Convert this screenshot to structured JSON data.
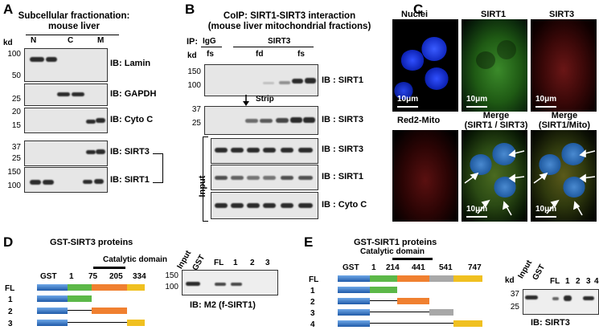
{
  "panelA": {
    "letter": "A",
    "title_line1": "Subcellular fractionation:",
    "title_line2": "mouse liver",
    "lanes": [
      "N",
      "C",
      "M"
    ],
    "kd": "kd",
    "ticks": [
      "100",
      "50",
      "25",
      "20",
      "15",
      "37",
      "25",
      "150",
      "100"
    ],
    "ib_labels": [
      "IB: Lamin",
      "IB: GAPDH",
      "IB: Cyto C",
      "IB: SIRT3",
      "IB: SIRT1"
    ]
  },
  "panelB": {
    "letter": "B",
    "title_line1": "CoIP: SIRT1-SIRT3 interaction",
    "title_line2": "(mouse liver mitochondrial fractions)",
    "ip": "IP:",
    "igg": "IgG",
    "sirt3": "SIRT3",
    "kd": "kd",
    "fractions": [
      "fs",
      "fd",
      "fs"
    ],
    "strip": "Strip",
    "input": "Input",
    "ticks": [
      "150",
      "100",
      "37",
      "25"
    ],
    "ib_labels": [
      "IB : SIRT1",
      "IB : SIRT3",
      "IB : SIRT3",
      "IB : SIRT1",
      "IB : Cyto C"
    ]
  },
  "panelC": {
    "letter": "C",
    "headers": [
      "Nuclei",
      "SIRT1",
      "SIRT3",
      "Red2-Mito",
      "Merge",
      "Merge"
    ],
    "subheaders": [
      "(SIRT1 / SIRT3)",
      "(SIRT1/Mito)"
    ],
    "scale": "10μm"
  },
  "panelD": {
    "letter": "D",
    "title": "GST-SIRT3 proteins",
    "domain": "Catalytic domain",
    "gst": "GST",
    "positions": [
      "1",
      "75",
      "205",
      "334"
    ],
    "constructs": [
      "FL",
      "1",
      "2",
      "3"
    ],
    "lanes": [
      "Input",
      "GST",
      "FL",
      "1",
      "2",
      "3"
    ],
    "ticks": [
      "150",
      "100"
    ],
    "ib": "IB: M2 (f-SIRT1)",
    "colors": {
      "gst": "#3a78c8",
      "green": "#5cb848",
      "orange": "#f08030",
      "yellow": "#f0c020"
    }
  },
  "panelE": {
    "letter": "E",
    "title": "GST-SIRT1 proteins",
    "domain": "Catalytic domain",
    "gst": "GST",
    "positions": [
      "1",
      "214",
      "441",
      "541",
      "747"
    ],
    "constructs": [
      "FL",
      "1",
      "2",
      "3",
      "4"
    ],
    "kd": "kd",
    "lanes": [
      "Input",
      "GST",
      "FL",
      "1",
      "2",
      "3",
      "4"
    ],
    "ticks": [
      "37",
      "25"
    ],
    "ib": "IB: SIRT3",
    "colors": {
      "gst": "#3a78c8",
      "green": "#5cb848",
      "orange": "#f08030",
      "gray": "#a8a8a8",
      "yellow": "#f0c020"
    }
  }
}
